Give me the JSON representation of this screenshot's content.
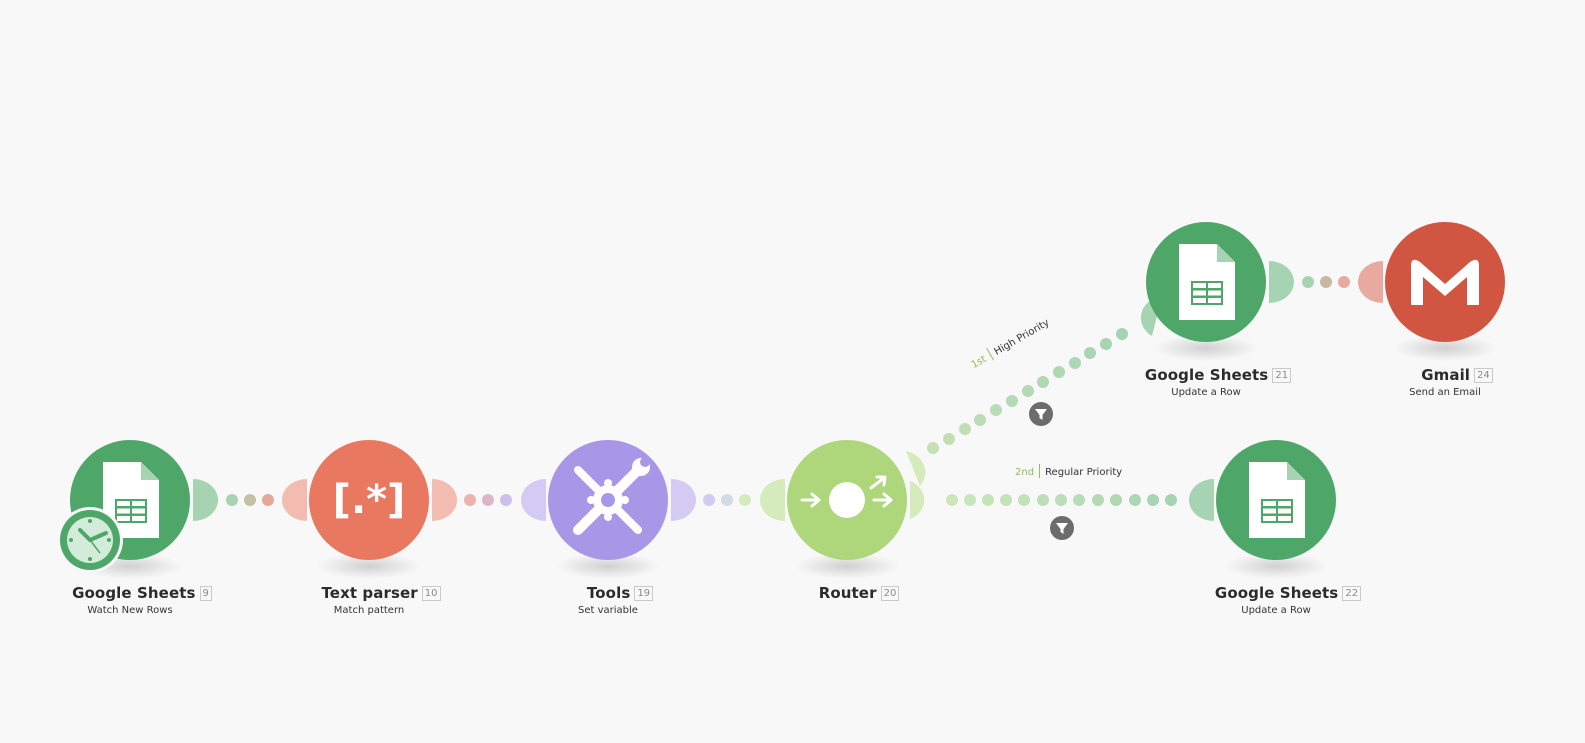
{
  "colors": {
    "sheets": "#4ea769",
    "sheets_light": "#a6d3b2",
    "text_parser": "#e97861",
    "text_parser_light": "#f3bcb1",
    "tools": "#a896e6",
    "tools_light": "#d3cbf3",
    "router": "#aed67a",
    "router_light": "#d6ebbb",
    "gmail": "#d05641",
    "gmail_light": "#e8aaa0",
    "filter": "#6c6c6c",
    "route_label": "#8dbf5c"
  },
  "modules": [
    {
      "app": "Google Sheets",
      "id": "9",
      "action": "Watch New Rows",
      "icon": "google-sheets-icon",
      "trigger_icon": "clock-icon"
    },
    {
      "app": "Text parser",
      "id": "10",
      "action": "Match pattern",
      "icon": "text-parser-icon"
    },
    {
      "app": "Tools",
      "id": "19",
      "action": "Set variable",
      "icon": "tools-icon"
    },
    {
      "app": "Router",
      "id": "20",
      "action": "",
      "icon": "router-icon"
    },
    {
      "app": "Google Sheets",
      "id": "21",
      "action": "Update a Row",
      "icon": "google-sheets-icon"
    },
    {
      "app": "Gmail",
      "id": "24",
      "action": "Send an Email",
      "icon": "gmail-icon"
    },
    {
      "app": "Google Sheets",
      "id": "22",
      "action": "Update a Row",
      "icon": "google-sheets-icon"
    }
  ],
  "routes": [
    {
      "order": "1st",
      "name": "High Priority",
      "icon": "filter-icon"
    },
    {
      "order": "2nd",
      "name": "Regular Priority",
      "icon": "filter-icon"
    }
  ]
}
